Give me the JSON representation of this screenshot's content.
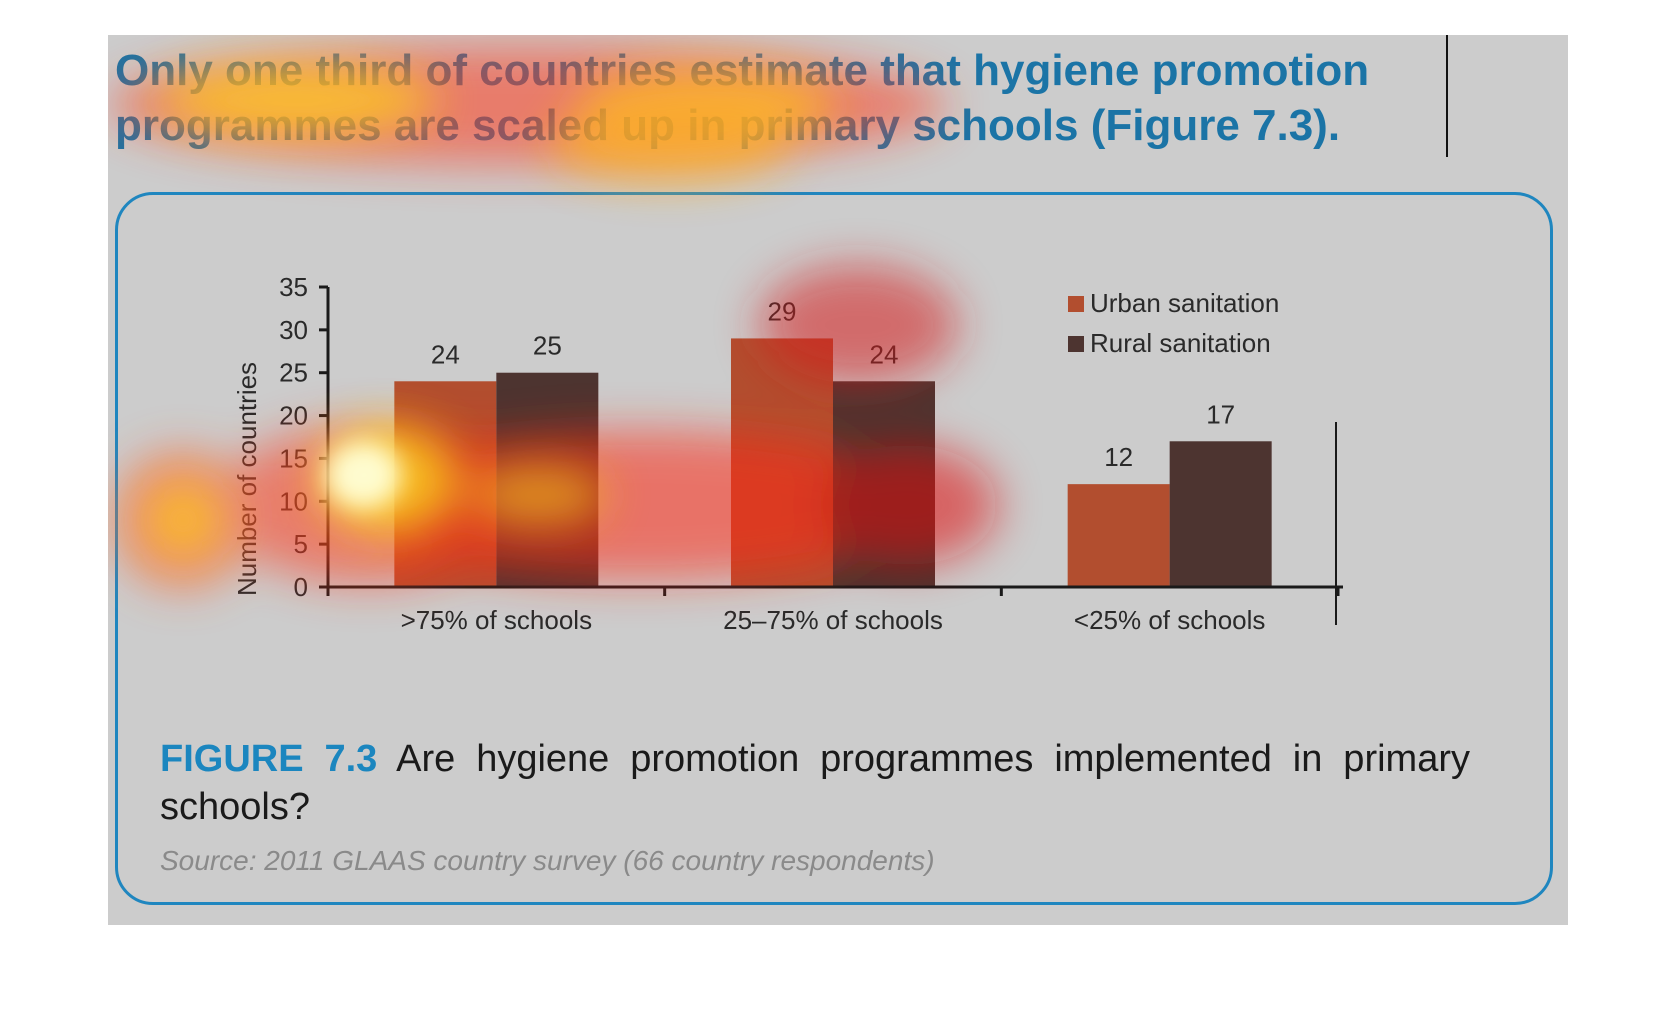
{
  "headline": {
    "text": "Only one third of countries estimate that hygiene promotion programmes are scaled up in primary schools (Figure 7.3)."
  },
  "caption": {
    "label": "FIGURE 7.3",
    "text": "Are hygiene promotion programmes implemented in primary schools?"
  },
  "source": {
    "text": "Source: 2011 GLAAS country survey (66 country respondents)"
  },
  "colors": {
    "urban": "#b24e2f",
    "rural": "#4d3430",
    "accent": "#1b74a6",
    "background": "#cccccc"
  },
  "chart_data": {
    "type": "bar",
    "title": "",
    "xlabel": "",
    "ylabel": "Number of countries",
    "ylim": [
      0,
      35
    ],
    "yticks": [
      0,
      5,
      10,
      15,
      20,
      25,
      30,
      35
    ],
    "categories": [
      ">75% of schools",
      "25–75% of schools",
      "<25% of schools"
    ],
    "series": [
      {
        "name": "Urban sanitation",
        "values": [
          24,
          29,
          12
        ],
        "color": "#b24e2f"
      },
      {
        "name": "Rural sanitation",
        "values": [
          25,
          24,
          17
        ],
        "color": "#4d3430"
      }
    ],
    "data_labels": true,
    "grid": false,
    "legend": "top-right"
  }
}
